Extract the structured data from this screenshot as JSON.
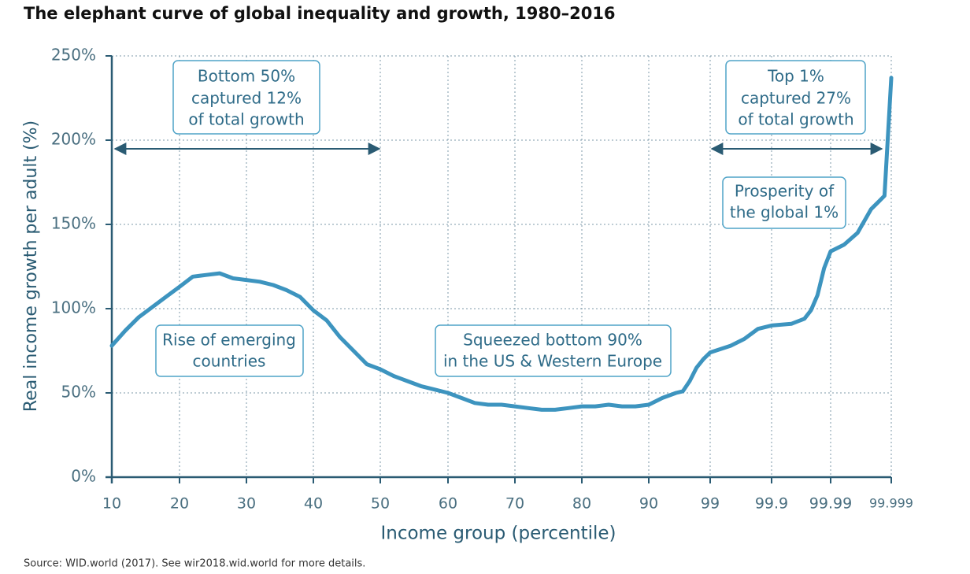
{
  "chart_data": {
    "type": "line",
    "title": "The elephant curve of global inequality and growth, 1980–2016",
    "x_label": "Income group (percentile)",
    "y_label": "Real income growth per adult (%)",
    "source": "Source: WID.world (2017). See wir2018.wid.world for more details.",
    "xlim": [
      10,
      99.999
    ],
    "xticks": [
      10,
      20,
      30,
      40,
      50,
      60,
      70,
      80,
      90,
      99,
      99.9,
      99.99,
      99.999
    ],
    "ylim": [
      0,
      250
    ],
    "yticks": [
      {
        "value": 0,
        "label": "0%"
      },
      {
        "value": 50,
        "label": "50%"
      },
      {
        "value": 100,
        "label": "100%"
      },
      {
        "value": 150,
        "label": "150%"
      },
      {
        "value": 200,
        "label": "200%"
      },
      {
        "value": 250,
        "label": "250%"
      }
    ],
    "grid": true,
    "x": [
      10,
      12,
      14,
      16,
      18,
      20,
      22,
      24,
      26,
      28,
      30,
      32,
      34,
      36,
      38,
      40,
      42,
      44,
      46,
      48,
      50,
      52,
      54,
      56,
      58,
      60,
      62,
      64,
      66,
      68,
      70,
      72,
      74,
      76,
      78,
      80,
      82,
      84,
      86,
      88,
      90,
      92,
      94,
      95,
      96,
      97,
      98,
      99,
      99.3,
      99.5,
      99.7,
      99.9,
      99.93,
      99.95,
      99.96,
      99.97,
      99.98,
      99.99,
      99.992,
      99.994,
      99.996,
      99.997,
      99.998,
      99.999
    ],
    "series": [
      {
        "color": "#3d94bf",
        "values": [
          78,
          87,
          95,
          101,
          107,
          113,
          119,
          120,
          121,
          118,
          117,
          116,
          114,
          111,
          107,
          99,
          93,
          83,
          75,
          67,
          64,
          60,
          57,
          54,
          52,
          50,
          47,
          44,
          43,
          43,
          42,
          41,
          40,
          40,
          41,
          42,
          42,
          43,
          42,
          42,
          43,
          47,
          50,
          51,
          57,
          65,
          70,
          74,
          78,
          82,
          88,
          90,
          91,
          94,
          99,
          108,
          124,
          134,
          138,
          145,
          159,
          163,
          167,
          237
        ]
      }
    ],
    "annotations": [
      {
        "text": [
          "Bottom 50%",
          "captured 12%",
          "of total growth"
        ]
      },
      {
        "text": [
          "Top 1%",
          "captured 27%",
          "of total growth"
        ]
      },
      {
        "text": [
          "Prosperity of",
          "the global 1%"
        ]
      },
      {
        "text": [
          "Rise of emerging",
          "countries"
        ]
      },
      {
        "text": [
          "Squeezed bottom 90%",
          "in the US & Western Europe"
        ]
      }
    ]
  }
}
